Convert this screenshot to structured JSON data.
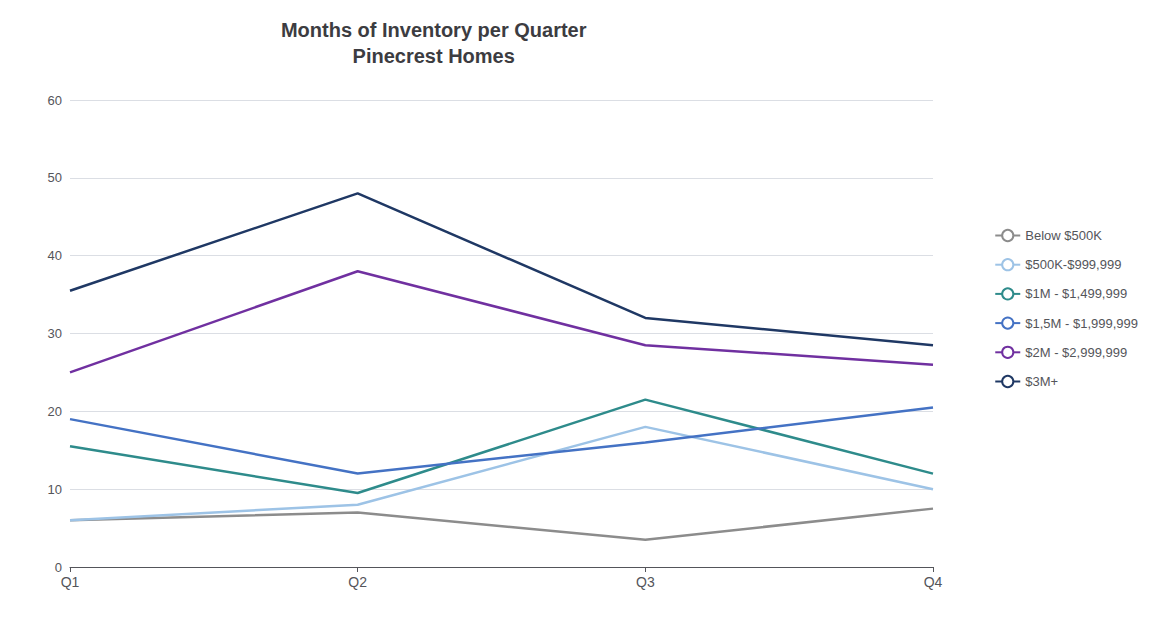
{
  "chart_data": {
    "type": "line",
    "title": "Months of Inventory per Quarter\nPinecrest Homes",
    "categories": [
      "Q1",
      "Q2",
      "Q3",
      "Q4"
    ],
    "series": [
      {
        "name": "Below $500K",
        "color": "#8c8c8c",
        "values": [
          6,
          7,
          3.5,
          7.5
        ]
      },
      {
        "name": "$500K-$999,999",
        "color": "#9dc3e6",
        "values": [
          6,
          8,
          18,
          10
        ]
      },
      {
        "name": "$1M - $1,499,999",
        "color": "#2e8b8b",
        "values": [
          15.5,
          9.5,
          21.5,
          12
        ]
      },
      {
        "name": "$1,5M - $1,999,999",
        "color": "#4472c4",
        "values": [
          19,
          12,
          16,
          20.5
        ]
      },
      {
        "name": "$2M - $2,999,999",
        "color": "#7030a0",
        "values": [
          25,
          38,
          28.5,
          26
        ]
      },
      {
        "name": "$3M+",
        "color": "#1f3864",
        "values": [
          35.5,
          48,
          32,
          28.5
        ]
      }
    ],
    "ylim": [
      0,
      60
    ],
    "yticks": [
      0,
      10,
      20,
      30,
      40,
      50,
      60
    ],
    "grid": true,
    "legend": "right"
  }
}
